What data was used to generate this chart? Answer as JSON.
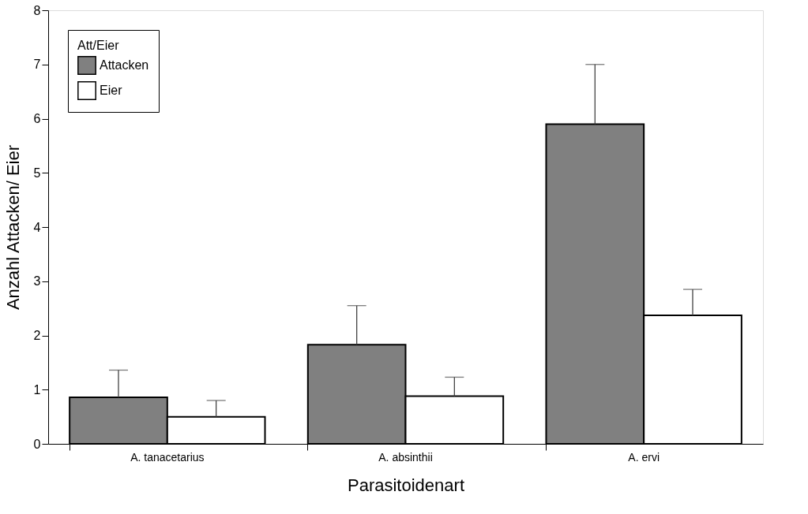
{
  "chart_data": {
    "type": "bar",
    "xlabel": "Parasitoidenart",
    "ylabel": "Anzahl Attacken/ Eier",
    "legend_title": "Att/Eier",
    "categories": [
      "A. tanacetarius",
      "A. absinthii",
      "A. ervi"
    ],
    "series": [
      {
        "name": "Attacken",
        "color": "#808080",
        "values": [
          0.86,
          1.83,
          5.9
        ],
        "errors": [
          [
            0.86,
            1.36
          ],
          [
            1.83,
            2.55
          ],
          [
            5.9,
            7.0
          ]
        ]
      },
      {
        "name": "Eier",
        "color": "#ffffff",
        "values": [
          0.5,
          0.88,
          2.37
        ],
        "errors": [
          [
            0.5,
            0.8
          ],
          [
            0.88,
            1.23
          ],
          [
            2.37,
            2.85
          ]
        ]
      }
    ],
    "ylim": [
      0,
      8
    ],
    "yticks": [
      0,
      1,
      2,
      3,
      4,
      5,
      6,
      7,
      8
    ],
    "grid": false,
    "legend": "top left"
  }
}
